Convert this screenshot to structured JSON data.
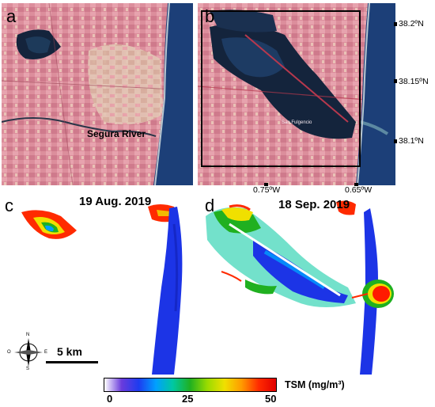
{
  "panels": {
    "a": {
      "letter": "a",
      "river_label": "Segura River"
    },
    "b": {
      "letter": "b",
      "place_label": "San Fulgencio"
    },
    "c": {
      "letter": "c",
      "date": "19 Aug. 2019"
    },
    "d": {
      "letter": "d",
      "date": "18 Sep. 2019"
    }
  },
  "latitude_labels": [
    "38.2ºN",
    "38.15ºN",
    "38.1ºN"
  ],
  "longitude_labels": [
    "0.75ºW",
    "0.65ºW"
  ],
  "scale_bar": {
    "label": "5 km"
  },
  "compass": {
    "letters": [
      "N",
      "S",
      "E",
      "O"
    ]
  },
  "colorbar": {
    "title": "TSM (mg/m³)",
    "ticks": [
      "0",
      "25",
      "50"
    ],
    "colors": [
      "#ffffff",
      "#6a3bdc",
      "#1d3cf0",
      "#00a0ff",
      "#00c8a0",
      "#20b020",
      "#9adb00",
      "#f0e000",
      "#ff9a00",
      "#ff2a00",
      "#e00000"
    ]
  },
  "colors": {
    "sea": "#1b3f7a",
    "land_pink": "#dd8d9b",
    "land_pale": "#e6c9b4",
    "lagoon_dark": "#17263c",
    "tsm_low": "#1c34e6",
    "tsm_high": "#ff1a00"
  }
}
